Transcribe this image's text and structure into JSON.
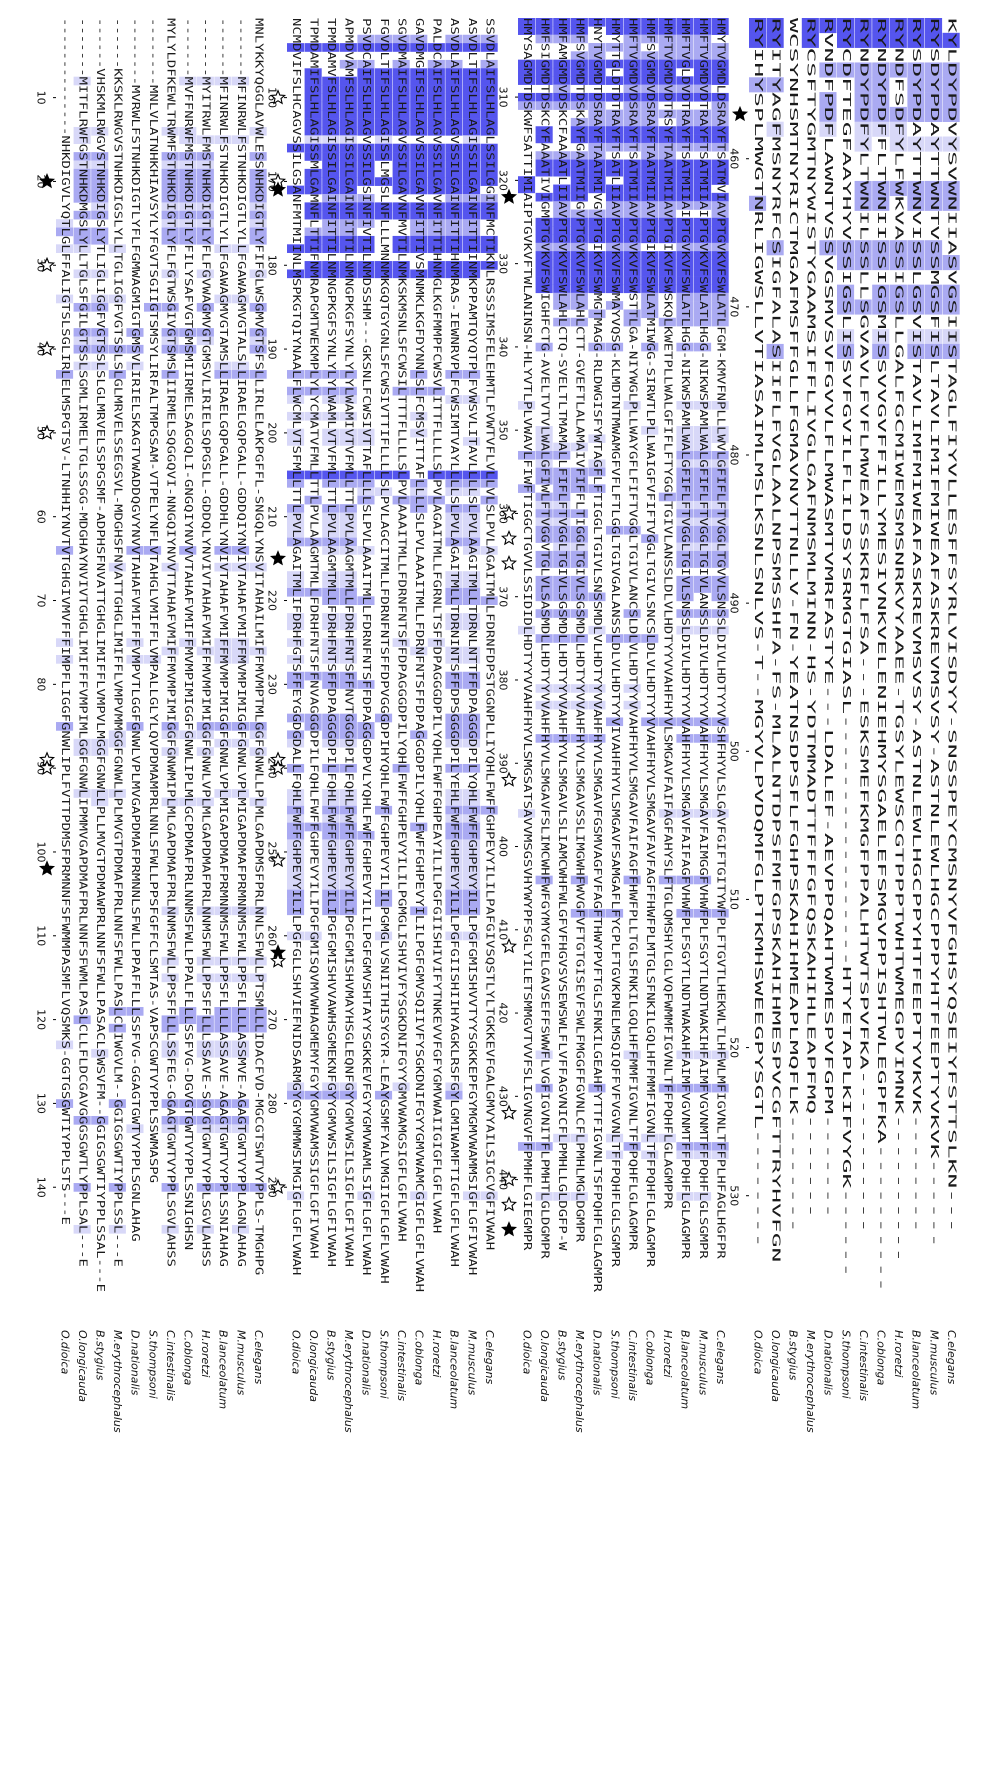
{
  "figure": {
    "species": [
      "O.dioica",
      "O.longicauda",
      "B.stygius",
      "M.erythrocephalus",
      "D.nationalis",
      "S.thompsoni",
      "C.intestinalis",
      "C.oblonga",
      "H.roretzi",
      "B.lanceolatum",
      "M.musculus",
      "C.elegans"
    ],
    "colors": {
      "conserved": "#5555ee",
      "similar": "#aaaaf2",
      "weak": "#d8d8f8",
      "star_filled": "#000000",
      "star_open": "#000000"
    },
    "blocks": [
      {
        "id": "block-1",
        "ticks": [
          "10",
          "20",
          "30",
          "40",
          "50",
          "60",
          "70",
          "80",
          "90",
          "100",
          "110",
          "120",
          "130",
          "140"
        ],
        "rows": [
          "--------------NHKDIGVLYQTLGLFFALIGTSLSGLIRLELMSPGTSV-LTNHHIYNVTVTGHGIVMVFFFIMPFLIGGFGNWLIPLFVTTPDMSFPRMNNFSFWMMPASMFLVQSMKS-GGTGSGWTIYPPLSTS---E",
          "-------MITFLRWFGSTNHKDMGSLYLLTGLSFGILGTSSLSGMLIRMELTGLSSGG-MDGHAYNVIVTGHGLIMIFFFVMPIMLGGFGNWLIPMMVGAPDMAFPRLNNFSFWMLPASLCLLFLDCGAVGGGSGWTLYPPLSAL---E",
          "------VHSKMLRWGVSTNHKDIGSLYTLIGLIGGFVGTSSLSLGLMRVELSSPGSMF-ADPHSFNVATTGHGLIMIFFLVMPVLMGGFGNWLLPLLMVGTPDMAWPRLNNFSFWLLPASACLSWSVFM--GGIGSGWTIYPPLSSAL---E",
          "------KKSKLRWGVSTNHKDIGSLYLLTGLIGGFVGTSSLSLGLMRVELSSEGSVL-MDGHSFNVATTGHGLIMIFFLVMPVMMGGFGNWLLPLMVGTPDMAFPRLNNFSFWLLPASLCLIWGVLM--GGIGSGWTIYPPLSSL---E",
          "--------MVRWLFSTNHKDIGTLYFLFGMWAGMIGTGMSVLIRIELSKAGTVWADDQGVYNVVTAHAFVMIFFFVMPVTLGGFGNWLVPLMVGAPDMAFPRMNNLSFWLLPPAFFLLLSSFVG-GGAGTGWTVYPPLSGNLAHAG",
          "--------MNLVLATNHKHIAVSYLYFGVTSGIIGTSMSYLIRFALTMPGSAM-VTPELYNFLVTAHGLVMIFFLVMPALLGLYLQVPDMAMPRLNNLSFWLLPPSFGFFCLSMTAS-VAPSCGWTVYPPLSSWMASPG",
          "MYLYLDFKEWLTRWMFSTNHKDIGTLYFLFGTWSGIVGTSMSLIIRMELSQGGQVI-NNGQIYNVVTTAHAFVMIFFMVMPIMIGGFGNWMIPLMLGAPDMAFPRLNNMSFWLLPPSFFLLLSSFEG-GGAGTGWTVYPPLSGVLAHSS",
          "-------MVFFNRWFMSTNHKDIGTLYFILYSAFVGTGMSMIIRMELSAGGQLI-GNGQIYNVVVTAHAFVMIFFMVMPIMIGGFGNWLIPLMLGCPDMAFPRLNNMSFWLLPPALFLLLSSFVG-DGVGTGWTVYPPLSSNIGHSN",
          "-------MYITRWLFMSTNHKDIGTLYFLFGVWAGMVGTGMSVLIRIELSQPGSLL-GDDQLYNVIVTAHAFVMIFFMVMPIMIGGFGNWLVPLMLGAPDMAFPRLNNMSFWLLPPSFFLLLSSAVE-SGVGTGWTVYPPLSGVLAHSS",
          "-------MFINRWLFSTNHKDIGTLYLLFGAWAGMVGTAMSLLIRAELGQPGALL-GDDHLYNVIVTAHAFVMIFFMVMPIMIGGFGNWLVPLMIGAPDMAFPRMNNMSFWLLPPSFLLLLASSAVE-AGAGTGWTVYPPLSSNIAHAG",
          "-------MFINRWLFSTNHKDIGTLYLLFGAWAGMVGTALSLLIRAELGQPGALL-GDDQIYNVIVTAHAFVMIFFMVMPIMIGGFGNWLVPLMIGAPDMAFPRMNNMSFWLLPPSFLLLLASSMVE-AGAGTGWTVYPPLAGNLAHAG",
          "MNLYKKYQGGLAVWLESSNHKDIGTLYFIFGLWSGMVGTSFSLLIRLELAKPGFFL-SNGQLYNSVITAHAILMIFFMVMPTMLGGFGNWLLPLMLGAPDMSFPRLNNLSFWLLPTSMLLLIDACFVD-MGCGTSWTVYPPLS-TMGHPG"
        ],
        "markers": [
          {
            "pos": 20,
            "kind": "filled"
          },
          {
            "pos": 30,
            "kind": "open"
          },
          {
            "pos": 40,
            "kind": "open"
          },
          {
            "pos": 50,
            "kind": "open"
          },
          {
            "pos": 89,
            "kind": "open"
          },
          {
            "pos": 90,
            "kind": "open"
          },
          {
            "pos": 102,
            "kind": "filled"
          }
        ]
      },
      {
        "id": "block-2",
        "ticks": [
          "160",
          "170",
          "180",
          "190",
          "200",
          "210",
          "220",
          "230",
          "240",
          "250",
          "260",
          "270",
          "280",
          "290"
        ],
        "rows": [
          "NCMDVIFSLHCAGVSSILGSANFMTMIINLMSPKGTQIYNAALFLWCMLVTSFMLLTTLPVLAGAITMLIFDRHFGTSFFEYGGDGDALLFQHLFWFFGHPEVYILILPGFGLLSHVIEFNIDSARMGYGYGMMWSIMGIGFLGFLVWAH",
          "TPMDAMIFSLHLAGISSMLGAMNFLTTIFNMRAPGMTWEKMPLYLYCMATVFMLLTTLPVLAAGMTMLLFDRHFNTSFFNVAGGGDPILFQHLFWFFGHPEVYILIPGFGMISQVMVWHAGMEMYFGYYGMVWAMSSIGFLGFIVWAH",
          "TPMDAMVFSLHLAGISSILGAINFITTILNMNGPKGFSYNLYLYLWAMLVTVFMLLTTLPVLAAGMTMLLFDRHFNTSFFDPAGGGDPILFQHLFWFFGHPEVYILIPGFGMISHVVAWHSGMEKNFGYYGMVWSILSIGFLGFIVWAH",
          "APMDVAMFSLHLAGISSILGAINFITTILNMNGPKGFSYNLYLYLWAMIVTVFMLLTTLPVLAAGMTMLLFDRHFNTSFFNVTGGGDPILFQHLFWFFGHPEVYILIPGFGMISHVMAYHSGLEQNFGYYGMVWSILSIGFLGFIVWAH",
          "PSVDCAIFSLHLAGVSSILGSINFIVTILNMDSSHM---GKSNLFCWSIVTTAFLLLLSLPVLAAAITMLLFDRNFNTSFFDPAGGGDPVLYQHLFWFFGHPEVYILILPGFGMVSHTAYYSGKKEVFGYYGMVWAMLSIGFLGFLVWAH",
          "FGVDLTIFSLHLAGISSLMGSLNFLLLMNNMKGQTGYGNLSFCWSIVTTIFLLLLSLPVLAGCITMLLFDRNFNTSFFDPVGGGDPIHYQHLFWFFGHPEVYILILPGMGLVSNIITHISYGYR-LEAYGSMFYALVMGIIGFLGFLVWAH",
          "SGVDMAIFSLHLAGVSSILGAVNFMVTILNMKSKMSNLSFCWSILTTTFLLLLSLPVLAAAITMLLFDRNFNTSFFDPAGGGDPILYQHLFWFFGHPEVYILILPGMGLISHVIVFYSGKDNIFGYYGMVWAMGSIGFLGFLVWAH",
          "GAVDMGIFSLHLAGVSSILGAVNFITTIVSMNMKLKGFDYNNLSLFCMSVITTAFLLLLSLPVLAAAITMLLFDRNFNTSFFDPAGGGDPILYQHLFWFFGHPEVYILILPGFGMVSQIIVFYSGKDNIFGYYGMVWAMCGIGFLGFLVWAH",
          "PALDCAIFSLHLAGVSSILGAVNFITTIHNMGLKGFMMPFCWSVLITTFLLLLSLPVLAGAITMLLFGRNLTSFFDPAGGGDPILYQHLFWFFGHPEAYILILPGFGIISHIVIFYTNKEVVFGFYGMVWAIIGIGFLGFLVWAH",
          "ASVDLAIFSLHLAGVSSILGAINFITTIHNMRAS-IEWNRVPLFCWSIMTVAYLLLLSLPVLAGAITMLLTDRNINTSFFDPSGGGDPILYEHLFWFFGHPEVYILILPGFGIISHIIHYAGKLRSFGYLGMIWAMFTIGFLGFLVWAH",
          "ASVDLTIFSLHLAGISSILGAINFITTIINMKPPAMTQYQTPLFVWSVLITAVLLLLSLPVLAAGITMLLTDRNLNTTFFDPAGGGDPILYQHLFWFFGHPEVYILILPGFGMISHVVTYYSGKKEPFGYMGMVWAMMSIGFLGFIVWAH",
          "SSVDLAIFSLHLAGLSSILGGINFMCTIKNLRSSSIMSFELEHMTLFVWTVFLVLLVLSLPVLAGAITMLLFDRNFDPSTGGNPLLIYQHLFWFFGHPEVYILILPAFGIVSQSTLYLTGKKEVFGALGMVYAILSIGCVGFIVWAH"
        ],
        "markers": [
          {
            "pos": 160,
            "kind": "open"
          },
          {
            "pos": 170,
            "kind": "open"
          },
          {
            "pos": 171,
            "kind": "filled"
          },
          {
            "pos": 215,
            "kind": "filled"
          },
          {
            "pos": 239,
            "kind": "open"
          },
          {
            "pos": 240,
            "kind": "open"
          },
          {
            "pos": 251,
            "kind": "open"
          },
          {
            "pos": 262,
            "kind": "filled"
          },
          {
            "pos": 263,
            "kind": "open"
          },
          {
            "pos": 290,
            "kind": "open"
          }
        ]
      },
      {
        "id": "block-3",
        "ticks": [
          "310",
          "320",
          "330",
          "340",
          "350",
          "360",
          "370",
          "380",
          "390",
          "400",
          "410",
          "420",
          "430",
          "440"
        ],
        "rows": [
          "HMYSAGMDTDSKWFSATTIMIAIPTGVKVFTWLANINSN-HLYVTLPLVWAVLFIWFTIGGCTGVVLSSIDIDLHDTYYVVAHFHYVLSMGSATSAVVMSGSVHYWYPFSGLYILETSMMGVTVVFSLIGVNGVFFPMHFLGIEGMPR",
          "HMFSIGMDTDSKCYFAAATIVIGMPTGVKVFSWIGHFCTG-AVELTVTVLWALGFIWLFTVGGVTGLVLSASMDLLHDTYYVVAHFHYVLSMGAVFSLIMCWHFWFGYMYGFELGAVSEFFSWWFLVGFIGVNITFLPMHTLGLDGMPR",
          "HMFAMGMDVDSKCFAAAATLIIAVPTGVKVFSWLAHLCTQ-SVELTLTMAMALLFIFLFTVGGLTGIVLSGSMDLLHDTYYVVAHFHYVLSMGAVLSLIAMCWHFWLGFVFHGVSVSEWSWLFLVFFAGVNICFLPMHLLGLDGFP-W",
          "HMFSVGMDTDSKAYFGAATMIIGVPTGVKVFSWLAHLCTT-GVEFTLALAMAIVFIFFLTIGGLTGIVLSGSMDLLHDTYYVVAHFHYVLSMGAVSSLIMGWHFWVGFVFTGTGISEVFSWLFMGGFFGVNLCFLPMHLMGLDGMPR",
          "HNYTVGMDTDSRAYFTAATMIVGVPTGIKVFSWMGTMAGG-RLDWGISFYWTAGFLFTIGGLTGIVLSNSSMDLVLHDTYYVVAHFHYVLSMGAVFGSMVAGFVFAGFTHWYPVFTGLSFNKILGEAHFYTTFIGVNLTSFPQHFLGLAGMPR",
          "HMYTTGLDTDTRAYFTSATLIIAVPTGVKVFSWMAYVQSG-KLMDTNTMWAMGFVFLFTLGGLTGIVGALANSSLDLVLHDTYYVIVAHFHYVLSMGAVFSAMGAFLFYCPLFTGVKPNELMSQIQFFVFVGVNLTFFPQHFLGLSGMPR",
          "HMFTVGMDVDSRAYFTSATMIIAVPTGVKVFSWSTTLGA-NIYWGLPLLWAYGFLFIFTVGGLTGIVLANCSLDLVLHDTYYVVAHFHYVLSMGAVFAIFAGFFHWFPLLTGLSFNKILGQLHFFMMFIGVNLTFFPQHFLGLAGMPR",
          "HMFSVGMDVDSRAYFTAATMIIAVPTGIKVFSWLATMIWGG-SIRWTLPLLWAIGFVFIFTVGGLTGIVLSNCSLDLVLHDTYYVVAHFHYVLSMGAVFAVFAGFFHWFPLMTGLSFNKILGQLHFFMMFIGVNLTFFPQHFLGLAGMPR",
          "HMFTVGMDVDTRSYFTAATMIIAVPTGIKVFSWSKQLKWETPLLWALGFIFLFTYGGLTGIVLANSSLDLVLHDTYYVVAHFHYVLSMGAVFAIFAGFAHYSLFTGLQMSHYLGLVQFWMMFIGVNLTFFPQHFLGLAGMPPR",
          "HMFTVGLDVDTRAYFTSATMIIAIPTGVKVFSWLATLHGG-NIKWSPAMLWALGFIFLFTVGGLTGIVLSNSSLDIVLHDTYYVVAHFHYVLSMGAVFAIFAGFVHWFPLFSGYTLNDTWAKAHFAIMFVGVNMTFFPQHFLGLAGMPR",
          "HMFTVGMDVDTRAYFTSATMIIAIPTGVKVFSWLATLHGG-NIKWSPAMLWALGFIFLFTVGGLTGIVLANSSLDIVLHDTYYVVAHFHYVLSMGAVFAIMGGFVHWFPLFSGYTLNDTWAKIHFAIMFVGVNMTFFPQHFLGLSGMPR",
          "HMYTVGMDLDSRAYFTSATMVIAVPTGVKVFSWLATLFGM-KMVFNPLLLWVLGFIFLFTVGGLTGVVLSNSSLDIVLHDTYYVVSHFHYVLSLGAVFGIFTGITYWFPLFTGVTLHEKWLTLHFWLMFIGVNLTFFPLHFAGLHGFPR"
        ],
        "markers": [
          {
            "pos": 322,
            "kind": "filled"
          },
          {
            "pos": 360,
            "kind": "open"
          },
          {
            "pos": 363,
            "kind": "open"
          },
          {
            "pos": 366,
            "kind": "open"
          },
          {
            "pos": 392,
            "kind": "open"
          },
          {
            "pos": 412,
            "kind": "open"
          },
          {
            "pos": 432,
            "kind": "open"
          },
          {
            "pos": 440,
            "kind": "open"
          },
          {
            "pos": 443,
            "kind": "open"
          },
          {
            "pos": 446,
            "kind": "filled"
          }
        ]
      },
      {
        "id": "block-4",
        "ticks": [
          "460",
          "470",
          "480",
          "490",
          "500",
          "510",
          "520",
          "530"
        ],
        "rows": [
          "RYIHYSPLMWGTNRLIGWSLLVTIASAIMLMSLKSNLSNLVS-T--MGYVLPVDQMFGLPTKMHSWEEGPYSGTL--------",
          "RYITYAGFMSNYRFCSIGFALASIIFLFVGLAALNPSMSSHFA-FS-MLALNTDPSFMFGPSKAHIHMESPVCGFTTRYHVFGN",
          "WCSYNHSMTNYRICTMGAFMSFFGLLFGMAVNVTTNLLV-FN-YEATNSDPSFLFGHPSKAHIHMEAPLMQFLK--------",
          "RYCSFTYGMTNYWISTYGAAMSIFFLIVGLGAFNMSMLMINN-HS-YDTMMADTTFFFGFQSKAHIHLEAPFMQ-------",
          "RVNDFPDFLAWNTVSSVGSMVSVFGVVLFLMWASMTVMRFASTYE---LDALEF-AEVPPQAHTWMESPVFGPM-------",
          "RYCDFTEGFAAYHYVSSIGSLISSVFGVILFLILDSYSRMGTGIASL-----------------HTYETAPLKIFVYGK------",
          "RYNDYPDFYLTWNILSSLLSGVAVLFVFLMWEAFSSKRFLFSA---ESKSMEFKMGFPPALHTWTSPVFKA-----------",
          "RYNDYPDFFLTWNIISSIGSMISSVVGVFFILLYMESIVNKVELENIEHMYSGAELEFSMGVPPISHTWLEGPFKA----------",
          "RYNDFSDFYLFWKVASSIGSLLGALFGCMIWEMSMSNRKVYAAEE-TGSYLEWSCGTPPPTWHTWMEGPVIMNK----------",
          "RYSDYPDAYTTWNVISSLGSVISTAVLIMFMIWEAFASKREVMSVSY-ASTNLEWLHGCPPYHTFEEPTYVKVK--------",
          "RYSDYPDAYTTWNTVSSMGSFISLTAVLIMIFMIWEAFASKREVMSVSY-ASTNLEWLHGCPPPYHTFEEPTYVKVK------",
          "KYLDYPDVYSVWNIIASVGSIISTAGLFIYVLLESFFSYRLVISDYY-SNSSPEYCMSNYVFGHSYQSEIYFSTTSLKN---"
        ],
        "markers": [
          {
            "pos": 457,
            "kind": "filled"
          }
        ]
      }
    ]
  }
}
